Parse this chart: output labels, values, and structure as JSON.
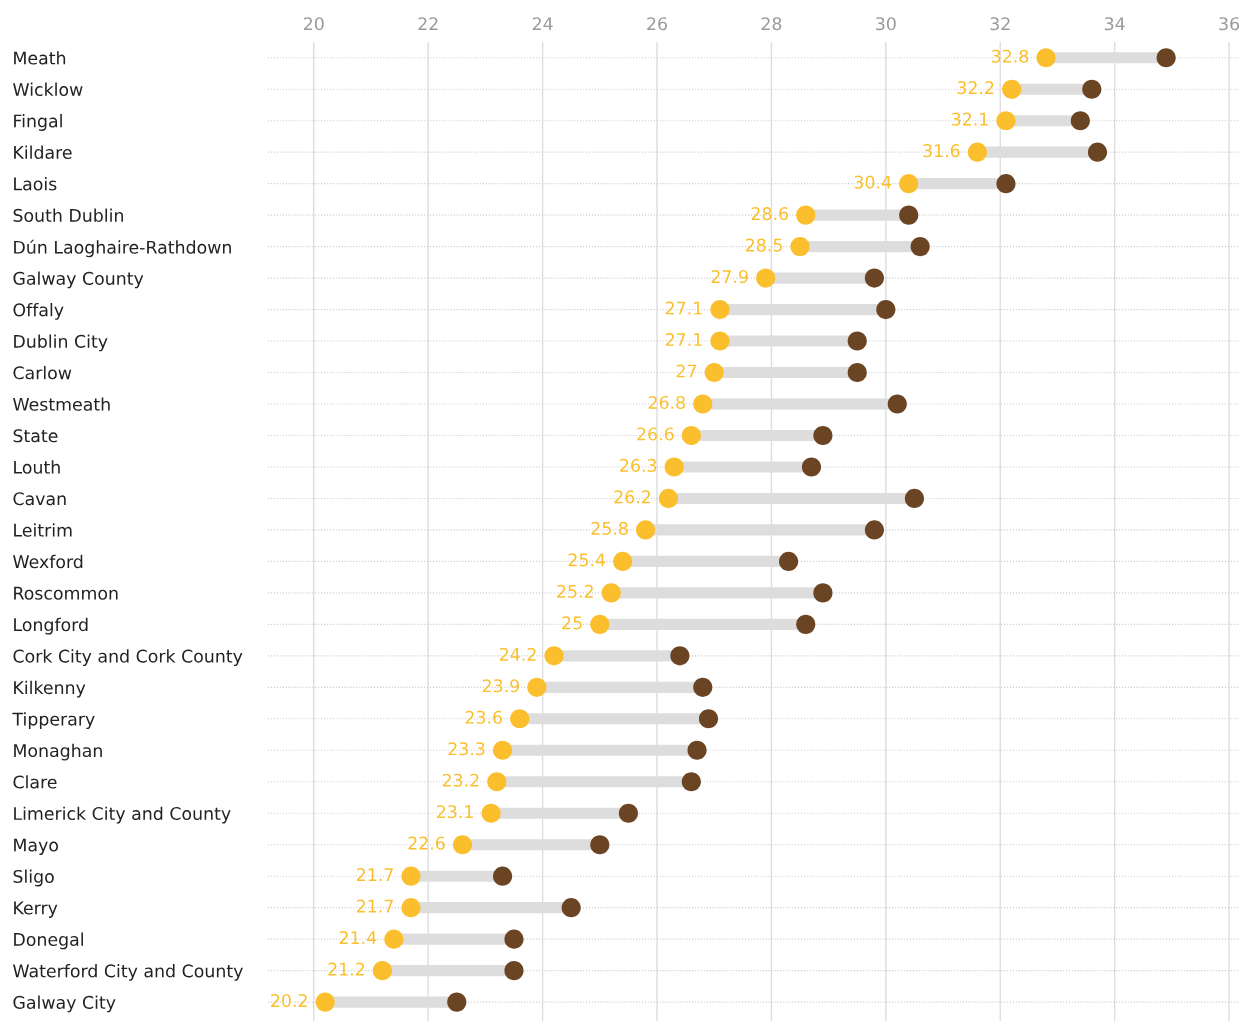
{
  "chart_data": {
    "type": "scatter",
    "categories": [
      "Meath",
      "Wicklow",
      "Fingal",
      "Kildare",
      "Laois",
      "South Dublin",
      "Dún Laoghaire-Rathdown",
      "Galway County",
      "Offaly",
      "Dublin City",
      "Carlow",
      "Westmeath",
      "State",
      "Louth",
      "Cavan",
      "Leitrim",
      "Wexford",
      "Roscommon",
      "Longford",
      "Cork City and Cork County",
      "Kilkenny",
      "Tipperary",
      "Monaghan",
      "Clare",
      "Limerick City and County",
      "Mayo",
      "Sligo",
      "Kerry",
      "Donegal",
      "Waterford City and County",
      "Galway City"
    ],
    "orientation": "horizontal",
    "series": [
      {
        "color": "#6b4423",
        "values": [
          34.9,
          33.6,
          33.4,
          33.7,
          32.1,
          30.4,
          30.6,
          29.8,
          30.0,
          29.5,
          29.5,
          30.2,
          28.9,
          28.7,
          30.5,
          29.8,
          28.3,
          28.9,
          28.6,
          26.4,
          26.8,
          26.9,
          26.7,
          26.6,
          25.5,
          25.0,
          23.3,
          24.5,
          23.5,
          23.5,
          22.5
        ]
      },
      {
        "color": "#fbbf2d",
        "values": [
          32.8,
          32.2,
          32.1,
          31.6,
          30.4,
          28.6,
          28.5,
          27.9,
          27.1,
          27.1,
          27,
          26.8,
          26.6,
          26.3,
          26.2,
          25.8,
          25.4,
          25.2,
          25,
          24.2,
          23.9,
          23.6,
          23.3,
          23.2,
          23.1,
          22.6,
          21.7,
          21.7,
          21.4,
          21.2,
          20.2
        ],
        "value_labels": [
          "32.8",
          "32.2",
          "32.1",
          "31.6",
          "30.4",
          "28.6",
          "28.5",
          "27.9",
          "27.1",
          "27.1",
          "27",
          "26.8",
          "26.6",
          "26.3",
          "26.2",
          "25.8",
          "25.4",
          "25.2",
          "25",
          "24.2",
          "23.9",
          "23.6",
          "23.3",
          "23.2",
          "23.1",
          "22.6",
          "21.7",
          "21.7",
          "21.4",
          "21.2",
          "20.2"
        ]
      }
    ],
    "xlim": [
      19.2,
      36.2
    ],
    "xticks": [
      20,
      22,
      24,
      26,
      28,
      30,
      32,
      34,
      36
    ],
    "grid": true,
    "legend": false,
    "marker": "circle"
  }
}
